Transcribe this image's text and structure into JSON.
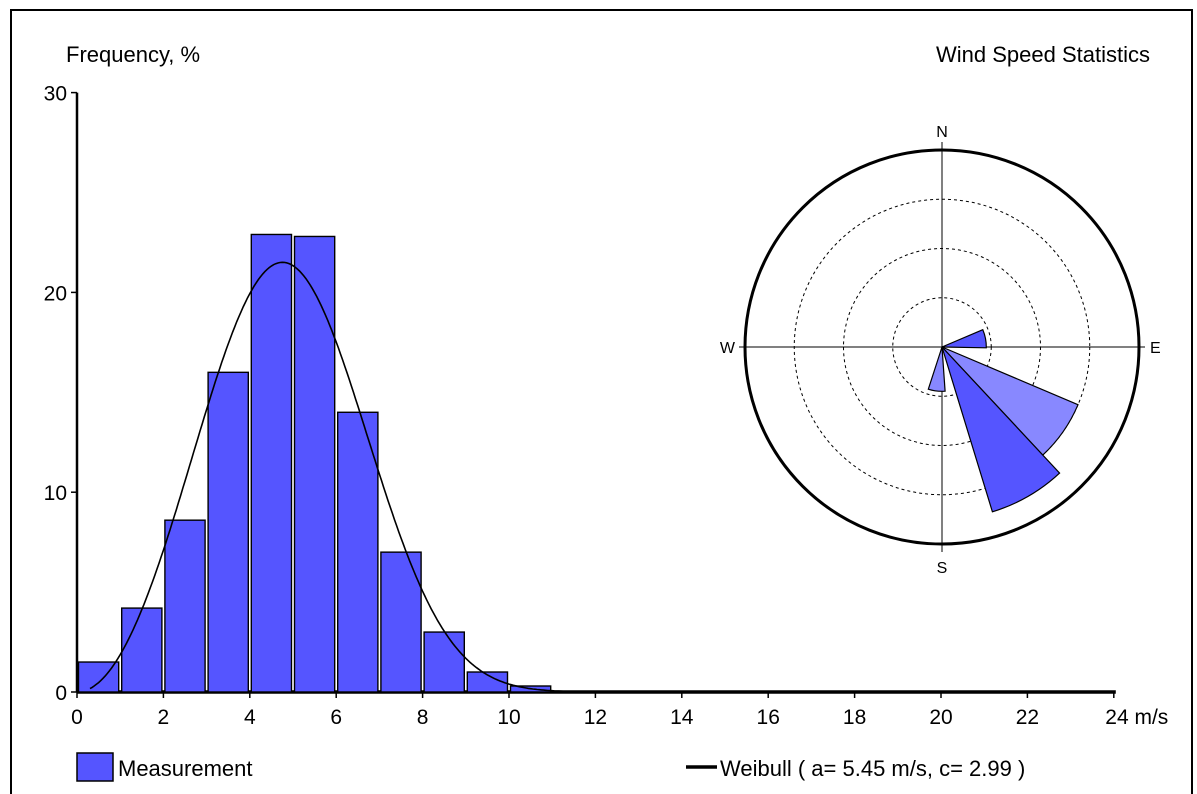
{
  "chart_data": [
    {
      "type": "bar",
      "ylabel": "Frequency, %",
      "xlabel": "",
      "x_unit": "m/s",
      "ylim": [
        0,
        30
      ],
      "xlim": [
        0,
        24
      ],
      "y_ticks": [
        0,
        10,
        20,
        30
      ],
      "x_ticks": [
        0,
        2,
        4,
        6,
        8,
        10,
        12,
        14,
        16,
        18,
        20,
        22,
        24
      ],
      "bar_width": 1,
      "categories": [
        0,
        1,
        2,
        3,
        4,
        5,
        6,
        7,
        8,
        9,
        10
      ],
      "series": [
        {
          "name": "Measurement",
          "type": "bar",
          "color": "#5555ff",
          "values": [
            1.5,
            4.2,
            8.6,
            16.0,
            22.9,
            22.8,
            14.0,
            7.0,
            3.0,
            1.0,
            0.3
          ]
        },
        {
          "name": "Weibull ( a= 5.45 m/s, c= 2.99 )",
          "type": "line",
          "color": "#000000",
          "weibull": {
            "a": 5.45,
            "c": 2.99
          }
        }
      ],
      "legend": [
        {
          "label": "Measurement",
          "marker": "box",
          "color": "#5555ff"
        },
        {
          "label": "Weibull ( a= 5.45 m/s, c= 2.99 )",
          "marker": "line",
          "color": "#000000"
        }
      ],
      "legend_position": "bottom"
    },
    {
      "type": "polar",
      "title": "Wind Speed Statistics",
      "directions": [
        "N",
        "E",
        "S",
        "W"
      ],
      "rings": 4,
      "sectors": [
        {
          "center_deg": 79,
          "width_deg": 24,
          "value": 0.9,
          "color": "#5555ff"
        },
        {
          "center_deg": 125,
          "width_deg": 24,
          "value": 3.0,
          "color": "#8888ff"
        },
        {
          "center_deg": 150,
          "width_deg": 26,
          "value": 3.5,
          "color": "#5555ff"
        },
        {
          "center_deg": 187,
          "width_deg": 22,
          "value": 0.9,
          "color": "#8888ff"
        }
      ]
    }
  ]
}
